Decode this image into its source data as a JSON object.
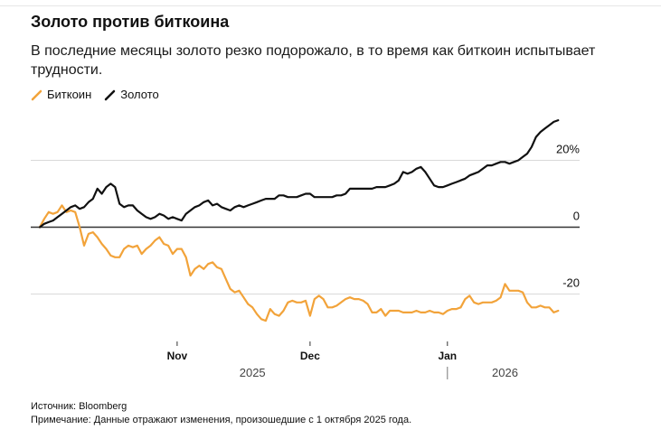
{
  "header": {
    "title": "Золото против биткоина",
    "subtitle": "В последние месяцы золото резко подорожало, в то время как биткоин испытывает трудности."
  },
  "colors": {
    "bitcoin": "#f2a33a",
    "gold": "#111111",
    "grid": "#d9d9d9",
    "zero": "#333333"
  },
  "footer": {
    "source": "Источник: Bloomberg",
    "note": "Примечание: Данные отражают изменения, произошедшие с 1 октября 2025 года."
  },
  "chart_data": {
    "type": "line",
    "title": "Золото против биткоина",
    "subtitle": "В последние месяцы золото резко подорожало, в то время как биткоин испытывает трудности.",
    "xlabel": "",
    "ylabel": "",
    "xlim": [
      "2025-10-01",
      "2026-02-19"
    ],
    "ylim": [
      -33,
      35
    ],
    "yticks": [
      {
        "value": 20,
        "label": "20%"
      },
      {
        "value": 0,
        "label": "0"
      },
      {
        "value": -20,
        "label": "-20"
      }
    ],
    "xticks": [
      {
        "date": "2025-11-01",
        "label": "Nov"
      },
      {
        "date": "2025-12-01",
        "label": "Dec"
      },
      {
        "date": "2026-01-01",
        "label": "Jan"
      }
    ],
    "year_labels": [
      {
        "date": "2025-11-18",
        "label": "2025"
      },
      {
        "date": "2026-01-14",
        "label": "2026"
      }
    ],
    "legend_position": "top-left",
    "grid": "horizontal",
    "series": [
      {
        "name": "Биткоин",
        "color": "#f2a33a",
        "points": [
          [
            "2025-10-01",
            0
          ],
          [
            "2025-10-02",
            2.5
          ],
          [
            "2025-10-03",
            4.5
          ],
          [
            "2025-10-04",
            4
          ],
          [
            "2025-10-05",
            4.5
          ],
          [
            "2025-10-06",
            6.5
          ],
          [
            "2025-10-07",
            4.5
          ],
          [
            "2025-10-08",
            5
          ],
          [
            "2025-10-09",
            4.5
          ],
          [
            "2025-10-10",
            0
          ],
          [
            "2025-10-11",
            -5.5
          ],
          [
            "2025-10-12",
            -2
          ],
          [
            "2025-10-13",
            -1.5
          ],
          [
            "2025-10-14",
            -3
          ],
          [
            "2025-10-15",
            -5
          ],
          [
            "2025-10-16",
            -6.5
          ],
          [
            "2025-10-17",
            -8.5
          ],
          [
            "2025-10-18",
            -9
          ],
          [
            "2025-10-19",
            -9
          ],
          [
            "2025-10-20",
            -6.5
          ],
          [
            "2025-10-21",
            -5.5
          ],
          [
            "2025-10-22",
            -6
          ],
          [
            "2025-10-23",
            -5.5
          ],
          [
            "2025-10-24",
            -8
          ],
          [
            "2025-10-25",
            -6.5
          ],
          [
            "2025-10-26",
            -5.5
          ],
          [
            "2025-10-27",
            -4
          ],
          [
            "2025-10-28",
            -3
          ],
          [
            "2025-10-29",
            -5
          ],
          [
            "2025-10-30",
            -5.5
          ],
          [
            "2025-10-31",
            -8
          ],
          [
            "2025-11-01",
            -6.5
          ],
          [
            "2025-11-02",
            -6.5
          ],
          [
            "2025-11-03",
            -9
          ],
          [
            "2025-11-04",
            -14.5
          ],
          [
            "2025-11-05",
            -12.5
          ],
          [
            "2025-11-06",
            -11.5
          ],
          [
            "2025-11-07",
            -12.5
          ],
          [
            "2025-11-08",
            -11
          ],
          [
            "2025-11-09",
            -10.5
          ],
          [
            "2025-11-10",
            -12
          ],
          [
            "2025-11-11",
            -12.5
          ],
          [
            "2025-11-12",
            -15.5
          ],
          [
            "2025-11-13",
            -18.5
          ],
          [
            "2025-11-14",
            -19.5
          ],
          [
            "2025-11-15",
            -19
          ],
          [
            "2025-11-16",
            -21
          ],
          [
            "2025-11-17",
            -23
          ],
          [
            "2025-11-18",
            -24
          ],
          [
            "2025-11-19",
            -26
          ],
          [
            "2025-11-20",
            -27.5
          ],
          [
            "2025-11-21",
            -28
          ],
          [
            "2025-11-22",
            -24.5
          ],
          [
            "2025-11-23",
            -26
          ],
          [
            "2025-11-24",
            -26.5
          ],
          [
            "2025-11-25",
            -25
          ],
          [
            "2025-11-26",
            -22.5
          ],
          [
            "2025-11-27",
            -22
          ],
          [
            "2025-11-28",
            -22.5
          ],
          [
            "2025-11-29",
            -22.5
          ],
          [
            "2025-11-30",
            -22
          ],
          [
            "2025-12-01",
            -26.5
          ],
          [
            "2025-12-02",
            -21.5
          ],
          [
            "2025-12-03",
            -20.5
          ],
          [
            "2025-12-04",
            -21.5
          ],
          [
            "2025-12-05",
            -24
          ],
          [
            "2025-12-06",
            -24
          ],
          [
            "2025-12-07",
            -23.5
          ],
          [
            "2025-12-08",
            -22.5
          ],
          [
            "2025-12-09",
            -21.5
          ],
          [
            "2025-12-10",
            -21
          ],
          [
            "2025-12-11",
            -21.5
          ],
          [
            "2025-12-12",
            -21.5
          ],
          [
            "2025-12-13",
            -22
          ],
          [
            "2025-12-14",
            -23
          ],
          [
            "2025-12-15",
            -25.5
          ],
          [
            "2025-12-16",
            -25.5
          ],
          [
            "2025-12-17",
            -24.5
          ],
          [
            "2025-12-18",
            -26.5
          ],
          [
            "2025-12-19",
            -25
          ],
          [
            "2025-12-20",
            -25
          ],
          [
            "2025-12-21",
            -25
          ],
          [
            "2025-12-22",
            -25.5
          ],
          [
            "2025-12-23",
            -25.5
          ],
          [
            "2025-12-24",
            -25.5
          ],
          [
            "2025-12-25",
            -25
          ],
          [
            "2025-12-26",
            -25.5
          ],
          [
            "2025-12-27",
            -25.5
          ],
          [
            "2025-12-28",
            -25
          ],
          [
            "2025-12-29",
            -25.5
          ],
          [
            "2025-12-30",
            -25.5
          ],
          [
            "2025-12-31",
            -26
          ],
          [
            "2026-01-01",
            -25
          ],
          [
            "2026-01-02",
            -24.5
          ],
          [
            "2026-01-03",
            -24.5
          ],
          [
            "2026-01-04",
            -24
          ],
          [
            "2026-01-05",
            -21.5
          ],
          [
            "2026-01-06",
            -20.5
          ],
          [
            "2026-01-07",
            -22.5
          ],
          [
            "2026-01-08",
            -23
          ],
          [
            "2026-01-09",
            -22.5
          ],
          [
            "2026-01-10",
            -22.5
          ],
          [
            "2026-01-11",
            -22.5
          ],
          [
            "2026-01-12",
            -22
          ],
          [
            "2026-01-13",
            -21
          ],
          [
            "2026-01-14",
            -17
          ],
          [
            "2026-01-15",
            -19
          ],
          [
            "2026-01-16",
            -19
          ],
          [
            "2026-01-17",
            -19
          ],
          [
            "2026-01-18",
            -19.5
          ],
          [
            "2026-01-19",
            -22.5
          ],
          [
            "2026-01-20",
            -24
          ],
          [
            "2026-01-21",
            -24
          ],
          [
            "2026-01-22",
            -23.5
          ],
          [
            "2026-01-23",
            -24
          ],
          [
            "2026-01-24",
            -24
          ],
          [
            "2026-01-25",
            -25.5
          ],
          [
            "2026-01-26",
            -25
          ]
        ]
      },
      {
        "name": "Золото",
        "color": "#111111",
        "points": [
          [
            "2025-10-01",
            0
          ],
          [
            "2025-10-02",
            1
          ],
          [
            "2025-10-03",
            1.5
          ],
          [
            "2025-10-04",
            2
          ],
          [
            "2025-10-05",
            3
          ],
          [
            "2025-10-06",
            4
          ],
          [
            "2025-10-07",
            5
          ],
          [
            "2025-10-08",
            6
          ],
          [
            "2025-10-09",
            6.5
          ],
          [
            "2025-10-10",
            5.5
          ],
          [
            "2025-10-11",
            6
          ],
          [
            "2025-10-12",
            7.5
          ],
          [
            "2025-10-13",
            8.5
          ],
          [
            "2025-10-14",
            11.5
          ],
          [
            "2025-10-15",
            10
          ],
          [
            "2025-10-16",
            12
          ],
          [
            "2025-10-17",
            13
          ],
          [
            "2025-10-18",
            12
          ],
          [
            "2025-10-19",
            7
          ],
          [
            "2025-10-20",
            6
          ],
          [
            "2025-10-21",
            6.5
          ],
          [
            "2025-10-22",
            6.5
          ],
          [
            "2025-10-23",
            5
          ],
          [
            "2025-10-24",
            4
          ],
          [
            "2025-10-25",
            3
          ],
          [
            "2025-10-26",
            2.5
          ],
          [
            "2025-10-27",
            3
          ],
          [
            "2025-10-28",
            4
          ],
          [
            "2025-10-29",
            3.5
          ],
          [
            "2025-10-30",
            2.5
          ],
          [
            "2025-10-31",
            3
          ],
          [
            "2025-11-01",
            2.5
          ],
          [
            "2025-11-02",
            2
          ],
          [
            "2025-11-03",
            4
          ],
          [
            "2025-11-04",
            5
          ],
          [
            "2025-11-05",
            6
          ],
          [
            "2025-11-06",
            6.5
          ],
          [
            "2025-11-07",
            7.5
          ],
          [
            "2025-11-08",
            8
          ],
          [
            "2025-11-09",
            6.5
          ],
          [
            "2025-11-10",
            7
          ],
          [
            "2025-11-11",
            6
          ],
          [
            "2025-11-12",
            5.5
          ],
          [
            "2025-11-13",
            5
          ],
          [
            "2025-11-14",
            6
          ],
          [
            "2025-11-15",
            6.5
          ],
          [
            "2025-11-16",
            6
          ],
          [
            "2025-11-17",
            6.5
          ],
          [
            "2025-11-18",
            7
          ],
          [
            "2025-11-19",
            7.5
          ],
          [
            "2025-11-20",
            8
          ],
          [
            "2025-11-21",
            8.5
          ],
          [
            "2025-11-22",
            8.5
          ],
          [
            "2025-11-23",
            8.5
          ],
          [
            "2025-11-24",
            9.5
          ],
          [
            "2025-11-25",
            9.5
          ],
          [
            "2025-11-26",
            9
          ],
          [
            "2025-11-27",
            9
          ],
          [
            "2025-11-28",
            9
          ],
          [
            "2025-11-29",
            9.5
          ],
          [
            "2025-11-30",
            10
          ],
          [
            "2025-12-01",
            10
          ],
          [
            "2025-12-02",
            9
          ],
          [
            "2025-12-03",
            9
          ],
          [
            "2025-12-04",
            9
          ],
          [
            "2025-12-05",
            9
          ],
          [
            "2025-12-06",
            9
          ],
          [
            "2025-12-07",
            9.5
          ],
          [
            "2025-12-08",
            9.5
          ],
          [
            "2025-12-09",
            10
          ],
          [
            "2025-12-10",
            11.5
          ],
          [
            "2025-12-11",
            11.5
          ],
          [
            "2025-12-12",
            11.5
          ],
          [
            "2025-12-13",
            11.5
          ],
          [
            "2025-12-14",
            11.5
          ],
          [
            "2025-12-15",
            11.5
          ],
          [
            "2025-12-16",
            12
          ],
          [
            "2025-12-17",
            12
          ],
          [
            "2025-12-18",
            12
          ],
          [
            "2025-12-19",
            12.5
          ],
          [
            "2025-12-20",
            13
          ],
          [
            "2025-12-21",
            14
          ],
          [
            "2025-12-22",
            16.5
          ],
          [
            "2025-12-23",
            16
          ],
          [
            "2025-12-24",
            16.5
          ],
          [
            "2025-12-25",
            17.5
          ],
          [
            "2025-12-26",
            18
          ],
          [
            "2025-12-27",
            16.5
          ],
          [
            "2025-12-28",
            14.5
          ],
          [
            "2025-12-29",
            12.5
          ],
          [
            "2025-12-30",
            12
          ],
          [
            "2025-12-31",
            12
          ],
          [
            "2026-01-01",
            12.5
          ],
          [
            "2026-01-02",
            13
          ],
          [
            "2026-01-03",
            13.5
          ],
          [
            "2026-01-04",
            14
          ],
          [
            "2026-01-05",
            14.5
          ],
          [
            "2026-01-06",
            15.5
          ],
          [
            "2026-01-07",
            16
          ],
          [
            "2026-01-08",
            16.5
          ],
          [
            "2026-01-09",
            17.5
          ],
          [
            "2026-01-10",
            18.5
          ],
          [
            "2026-01-11",
            18.5
          ],
          [
            "2026-01-12",
            19
          ],
          [
            "2026-01-13",
            19.5
          ],
          [
            "2026-01-14",
            19.5
          ],
          [
            "2026-01-15",
            19
          ],
          [
            "2026-01-16",
            19.5
          ],
          [
            "2026-01-17",
            20
          ],
          [
            "2026-01-18",
            21
          ],
          [
            "2026-01-19",
            22
          ],
          [
            "2026-01-20",
            24
          ],
          [
            "2026-01-21",
            27
          ],
          [
            "2026-01-22",
            28.5
          ],
          [
            "2026-01-23",
            29.5
          ],
          [
            "2026-01-24",
            30.5
          ],
          [
            "2026-01-25",
            31.5
          ],
          [
            "2026-01-26",
            32
          ]
        ]
      }
    ]
  }
}
